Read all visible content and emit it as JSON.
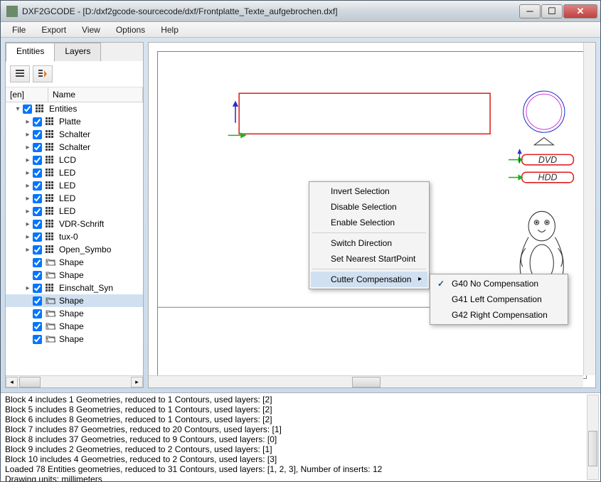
{
  "window": {
    "app": "DXF2GCODE",
    "path": "[D:/dxf2gcode-sourcecode/dxf/Frontplatte_Texte_aufgebrochen.dxf]"
  },
  "menu": [
    "File",
    "Export",
    "View",
    "Options",
    "Help"
  ],
  "tabs": {
    "entities": "Entities",
    "layers": "Layers"
  },
  "treehdr": {
    "c1": "[en]",
    "c2": "Name"
  },
  "tree": [
    {
      "d": 0,
      "exp": "▾",
      "ic": "grid",
      "label": "Entities"
    },
    {
      "d": 1,
      "exp": "▸",
      "ic": "grid",
      "label": "Platte"
    },
    {
      "d": 1,
      "exp": "▸",
      "ic": "grid",
      "label": "Schalter"
    },
    {
      "d": 1,
      "exp": "▸",
      "ic": "grid",
      "label": "Schalter"
    },
    {
      "d": 1,
      "exp": "▸",
      "ic": "grid",
      "label": "LCD"
    },
    {
      "d": 1,
      "exp": "▸",
      "ic": "grid",
      "label": "LED"
    },
    {
      "d": 1,
      "exp": "▸",
      "ic": "grid",
      "label": "LED"
    },
    {
      "d": 1,
      "exp": "▸",
      "ic": "grid",
      "label": "LED"
    },
    {
      "d": 1,
      "exp": "▸",
      "ic": "grid",
      "label": "LED"
    },
    {
      "d": 1,
      "exp": "▸",
      "ic": "grid",
      "label": "VDR-Schrift"
    },
    {
      "d": 1,
      "exp": "▸",
      "ic": "grid",
      "label": "tux-0"
    },
    {
      "d": 1,
      "exp": "▸",
      "ic": "grid",
      "label": "Open_Symbo"
    },
    {
      "d": 1,
      "exp": "",
      "ic": "fold",
      "label": "Shape"
    },
    {
      "d": 1,
      "exp": "",
      "ic": "fold",
      "label": "Shape"
    },
    {
      "d": 1,
      "exp": "▸",
      "ic": "grid",
      "label": "Einschalt_Syn"
    },
    {
      "d": 1,
      "exp": "",
      "ic": "fold",
      "label": "Shape",
      "sel": true
    },
    {
      "d": 1,
      "exp": "",
      "ic": "fold",
      "label": "Shape"
    },
    {
      "d": 1,
      "exp": "",
      "ic": "fold",
      "label": "Shape"
    },
    {
      "d": 1,
      "exp": "",
      "ic": "fold",
      "label": "Shape"
    }
  ],
  "ctx": {
    "invert": "Invert Selection",
    "disable": "Disable Selection",
    "enable": "Enable Selection",
    "switch": "Switch Direction",
    "nearest": "Set Nearest StartPoint",
    "cutter": "Cutter Compensation"
  },
  "submenu": {
    "g40": "G40 No Compensation",
    "g41": "G41 Left Compensation",
    "g42": "G42 Right Compensation"
  },
  "canvaslabels": {
    "dvd": "DVD",
    "hdd": "HDD"
  },
  "log": [
    "Block 4 includes 1 Geometries, reduced to 1 Contours, used layers: [2]",
    "Block 5 includes 8 Geometries, reduced to 1 Contours, used layers: [2]",
    "Block 6 includes 8 Geometries, reduced to 1 Contours, used layers: [2]",
    "Block 7 includes 87 Geometries, reduced to 20 Contours, used layers: [1]",
    "Block 8 includes 37 Geometries, reduced to 9 Contours, used layers: [0]",
    "Block 9 includes 2 Geometries, reduced to 2 Contours, used layers: [1]",
    "Block 10 includes 4 Geometries, reduced to 2 Contours, used layers: [3]",
    "Loaded 78 Entities geometries, reduced to 31 Contours, used layers: [1, 2, 3], Number of inserts: 12",
    "Drawing units: millimeters"
  ],
  "colors": {
    "selection": "#d0e0f0",
    "shape_red": "#e02020",
    "shape_blue": "#2030d0",
    "shape_magenta": "#d040d0",
    "shape_green": "#20b020",
    "shape_black": "#303030"
  }
}
